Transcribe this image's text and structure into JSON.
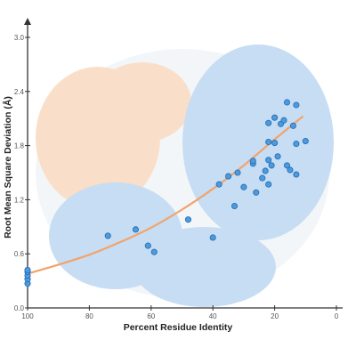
{
  "colors": {
    "points": "#4a9be0",
    "point_stroke": "#2a6fb5",
    "fit_line": "#f2a36b",
    "background_blue": "#8fbde8",
    "background_orange": "#f5c196"
  },
  "chart_data": {
    "type": "scatter",
    "title": "",
    "xlabel": "Percent Residue Identity",
    "ylabel": "Root Mean Square Deviation (Å)",
    "xlim": [
      100,
      0
    ],
    "ylim": [
      0,
      3.0
    ],
    "x_reversed": true,
    "x_ticks": [
      "100",
      "80",
      "60",
      "40",
      "20",
      "0"
    ],
    "y_ticks": [
      "0.0",
      "0.6",
      "1.2",
      "1.8",
      "2.4",
      "3.0"
    ],
    "grid": false,
    "legend": "none",
    "background": "semi-transparent protein structure rendering (ribbon and surface, blue and orange)",
    "series": [
      {
        "points": [
          {
            "x": 100,
            "y": 0.27
          },
          {
            "x": 100,
            "y": 0.32
          },
          {
            "x": 100,
            "y": 0.36
          },
          {
            "x": 100,
            "y": 0.4
          },
          {
            "x": 100,
            "y": 0.42
          },
          {
            "x": 74,
            "y": 0.8
          },
          {
            "x": 65,
            "y": 0.87
          },
          {
            "x": 61,
            "y": 0.69
          },
          {
            "x": 59,
            "y": 0.62
          },
          {
            "x": 48,
            "y": 0.98
          },
          {
            "x": 40,
            "y": 0.78
          },
          {
            "x": 38,
            "y": 1.37
          },
          {
            "x": 35,
            "y": 1.46
          },
          {
            "x": 33,
            "y": 1.13
          },
          {
            "x": 32,
            "y": 1.5
          },
          {
            "x": 30,
            "y": 1.34
          },
          {
            "x": 27,
            "y": 1.6
          },
          {
            "x": 27,
            "y": 1.63
          },
          {
            "x": 26,
            "y": 1.28
          },
          {
            "x": 24,
            "y": 1.44
          },
          {
            "x": 23,
            "y": 1.52
          },
          {
            "x": 22,
            "y": 1.37
          },
          {
            "x": 22,
            "y": 1.64
          },
          {
            "x": 22,
            "y": 1.84
          },
          {
            "x": 22,
            "y": 2.05
          },
          {
            "x": 21,
            "y": 1.58
          },
          {
            "x": 20,
            "y": 1.83
          },
          {
            "x": 20,
            "y": 2.11
          },
          {
            "x": 19,
            "y": 1.68
          },
          {
            "x": 18,
            "y": 2.04
          },
          {
            "x": 17,
            "y": 2.08
          },
          {
            "x": 16,
            "y": 2.28
          },
          {
            "x": 16,
            "y": 1.58
          },
          {
            "x": 15,
            "y": 1.53
          },
          {
            "x": 14,
            "y": 2.02
          },
          {
            "x": 13,
            "y": 2.25
          },
          {
            "x": 13,
            "y": 1.82
          },
          {
            "x": 13,
            "y": 1.48
          },
          {
            "x": 10,
            "y": 1.85
          }
        ]
      }
    ],
    "fit": {
      "type": "exponential",
      "x": [
        100,
        90,
        80,
        70,
        60,
        50,
        40,
        30,
        20,
        11
      ],
      "y": [
        0.38,
        0.48,
        0.59,
        0.73,
        0.89,
        1.09,
        1.32,
        1.58,
        1.87,
        2.12
      ]
    }
  }
}
